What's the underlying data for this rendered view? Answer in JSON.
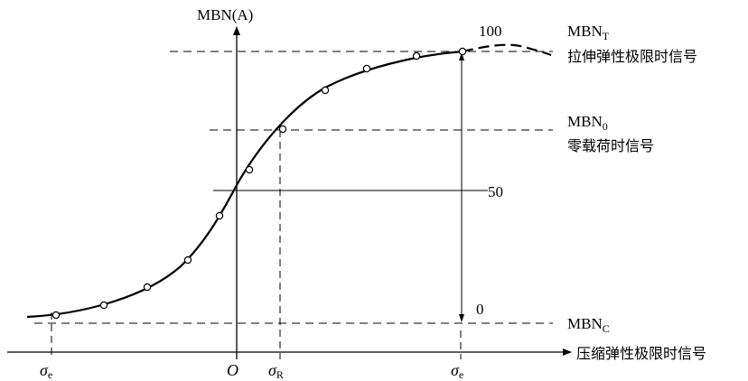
{
  "labels": {
    "y_axis": "MBN(A)",
    "x_axis": "压缩弹性极限时信号",
    "origin": "O",
    "sigma": "σ",
    "sub_e": "e",
    "sub_R": "R",
    "scale_100": "100",
    "scale_50": "50",
    "scale_0": "0",
    "mbn": "MBN",
    "sub_T": "T",
    "sub_0": "0",
    "sub_C": "C",
    "tension_desc": "拉伸弹性极限时信号",
    "zero_load_desc": "零载荷时信号"
  },
  "colors": {
    "ink": "#000000",
    "background": "#ffffff"
  }
}
